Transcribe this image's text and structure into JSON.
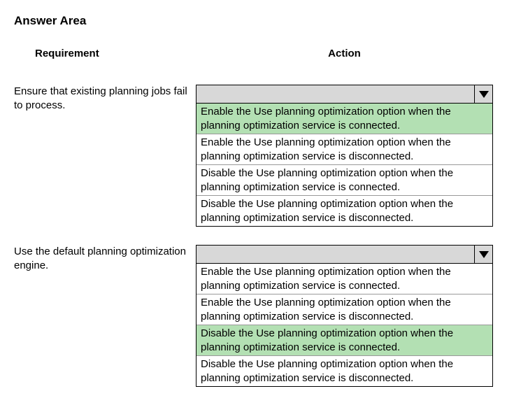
{
  "title": "Answer Area",
  "headers": {
    "requirement": "Requirement",
    "action": "Action"
  },
  "highlight_color": "#b3e0b3",
  "dropdown_bg": "#d8d8d8",
  "border_color": "#000000",
  "questions": [
    {
      "requirement": "Ensure that existing planning jobs fail to process.",
      "options": [
        {
          "text": "Enable the Use planning optimization option when the planning optimization service is connected.",
          "highlighted": true
        },
        {
          "text": "Enable the Use planning optimization option when the planning optimization service is disconnected.",
          "highlighted": false
        },
        {
          "text": "Disable the Use planning optimization option when the planning optimization service is connected.",
          "highlighted": false
        },
        {
          "text": "Disable the Use planning optimization option when the planning optimization service is disconnected.",
          "highlighted": false
        }
      ]
    },
    {
      "requirement": "Use the default planning optimization engine.",
      "options": [
        {
          "text": "Enable the Use planning optimization option when the planning optimization service is connected.",
          "highlighted": false
        },
        {
          "text": "Enable the Use planning optimization option when the planning optimization service is disconnected.",
          "highlighted": false
        },
        {
          "text": "Disable the Use planning optimization option when the planning optimization service is connected.",
          "highlighted": true
        },
        {
          "text": "Disable the Use planning optimization option when the planning optimization service is disconnected.",
          "highlighted": false
        }
      ]
    }
  ]
}
